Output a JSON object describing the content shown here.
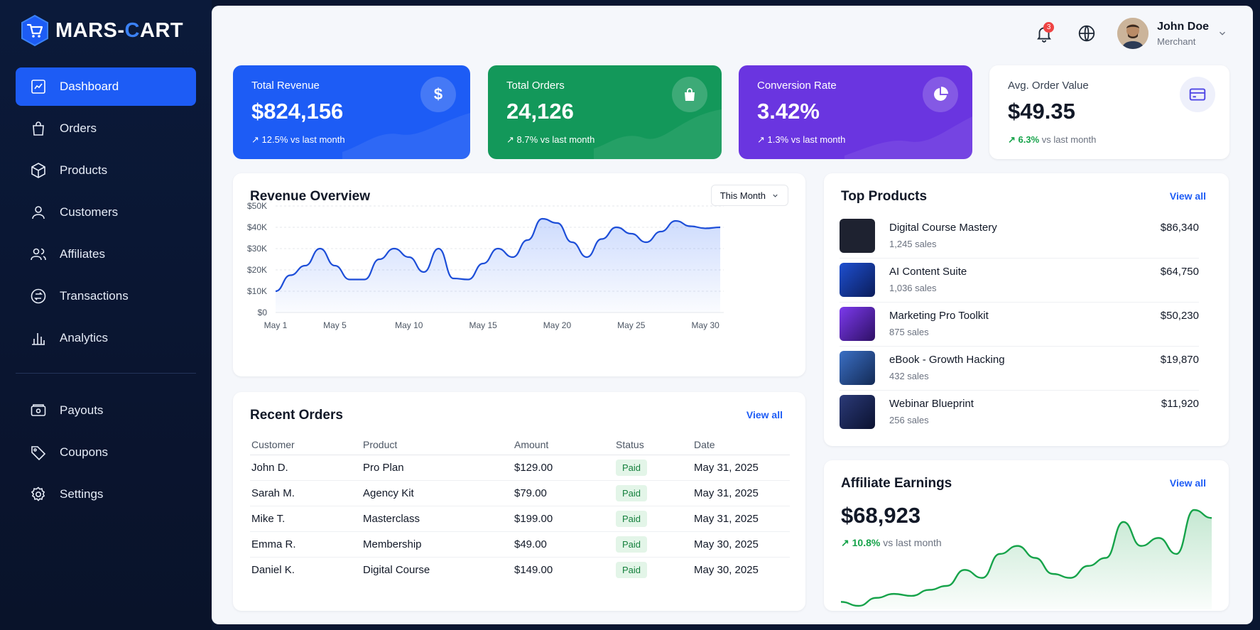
{
  "brand": {
    "name_a": "MARS-",
    "name_b": "C",
    "name_c": "ART"
  },
  "sidebar": {
    "items": [
      {
        "label": "Dashboard",
        "icon": "dashboard-icon",
        "active": true
      },
      {
        "label": "Orders",
        "icon": "shopping-bag-icon"
      },
      {
        "label": "Products",
        "icon": "box-icon"
      },
      {
        "label": "Customers",
        "icon": "user-icon"
      },
      {
        "label": "Affiliates",
        "icon": "users-icon"
      },
      {
        "label": "Transactions",
        "icon": "transfer-icon"
      },
      {
        "label": "Analytics",
        "icon": "bar-chart-icon"
      }
    ],
    "items2": [
      {
        "label": "Payouts",
        "icon": "wallet-icon"
      },
      {
        "label": "Coupons",
        "icon": "tag-icon"
      },
      {
        "label": "Settings",
        "icon": "gear-icon"
      }
    ]
  },
  "header": {
    "notification_count": "3",
    "user_name": "John Doe",
    "user_role": "Merchant"
  },
  "stats": [
    {
      "label": "Total Revenue",
      "value": "$824,156",
      "change": "12.5%",
      "suffix": "vs last month",
      "icon": "dollar-icon",
      "color": "#1d5cf5"
    },
    {
      "label": "Total Orders",
      "value": "24,126",
      "change": "8.7%",
      "suffix": "vs last month",
      "icon": "shopping-bag-icon",
      "color": "#13985a"
    },
    {
      "label": "Conversion Rate",
      "value": "3.42%",
      "change": "1.3%",
      "suffix": "vs last month",
      "icon": "pie-chart-icon",
      "color": "#6a35e0"
    },
    {
      "label": "Avg. Order Value",
      "value": "$49.35",
      "change": "6.3%",
      "suffix": "vs last month",
      "icon": "credit-card-icon",
      "color": "#ffffff"
    }
  ],
  "revenue": {
    "title": "Revenue Overview",
    "period": "This Month"
  },
  "chart_data": {
    "type": "area",
    "title": "Revenue Overview",
    "xlabel": "",
    "ylabel": "",
    "ylim": [
      0,
      50000
    ],
    "yticks": [
      "$0",
      "$10K",
      "$20K",
      "$30K",
      "$40K",
      "$50K"
    ],
    "xticks": [
      "May 1",
      "May 5",
      "May 10",
      "May 15",
      "May 20",
      "May 25",
      "May 30"
    ],
    "x": [
      1,
      2,
      3,
      4,
      5,
      6,
      7,
      8,
      9,
      10,
      11,
      12,
      13,
      14,
      15,
      16,
      17,
      18,
      19,
      20,
      21,
      22,
      23,
      24,
      25,
      26,
      27,
      28,
      29,
      30,
      31
    ],
    "values": [
      10000,
      17500,
      22000,
      30000,
      22000,
      15500,
      15500,
      25000,
      30000,
      26000,
      19000,
      30000,
      16000,
      15500,
      23000,
      30000,
      26000,
      34000,
      44000,
      42000,
      33000,
      26000,
      34500,
      40000,
      37000,
      33000,
      38000,
      43000,
      40500,
      39500,
      40000
    ],
    "grid": true
  },
  "orders": {
    "title": "Recent Orders",
    "view_all": "View all",
    "columns": [
      "Customer",
      "Product",
      "Amount",
      "Status",
      "Date"
    ],
    "rows": [
      {
        "customer": "John D.",
        "product": "Pro Plan",
        "amount": "$129.00",
        "status": "Paid",
        "date": "May 31, 2025"
      },
      {
        "customer": "Sarah M.",
        "product": "Agency Kit",
        "amount": "$79.00",
        "status": "Paid",
        "date": "May 31, 2025"
      },
      {
        "customer": "Mike T.",
        "product": "Masterclass",
        "amount": "$199.00",
        "status": "Paid",
        "date": "May 31, 2025"
      },
      {
        "customer": "Emma R.",
        "product": "Membership",
        "amount": "$49.00",
        "status": "Paid",
        "date": "May 30, 2025"
      },
      {
        "customer": "Daniel K.",
        "product": "Digital Course",
        "amount": "$149.00",
        "status": "Paid",
        "date": "May 30, 2025"
      }
    ]
  },
  "top_products": {
    "title": "Top Products",
    "view_all": "View all",
    "items": [
      {
        "name": "Digital Course Mastery",
        "sales": "1,245 sales",
        "value": "$86,340",
        "color": "#1e2230"
      },
      {
        "name": "AI Content Suite",
        "sales": "1,036 sales",
        "value": "$64,750",
        "color": "#1e4fd0"
      },
      {
        "name": "Marketing Pro Toolkit",
        "sales": "875 sales",
        "value": "$50,230",
        "color": "#5b21b6"
      },
      {
        "name": "eBook - Growth Hacking",
        "sales": "432 sales",
        "value": "$19,870",
        "color": "#2a4a8a"
      },
      {
        "name": "Webinar Blueprint",
        "sales": "256 sales",
        "value": "$11,920",
        "color": "#1a2448"
      }
    ]
  },
  "affiliate": {
    "title": "Affiliate Earnings",
    "view_all": "View all",
    "value": "$68,923",
    "change": "10.8%",
    "suffix": "vs last month",
    "trend": [
      2,
      1,
      3,
      4,
      3.5,
      5,
      6,
      10,
      8,
      14,
      16,
      13,
      9,
      8,
      11,
      13,
      22,
      16,
      18,
      14,
      25,
      23
    ]
  }
}
